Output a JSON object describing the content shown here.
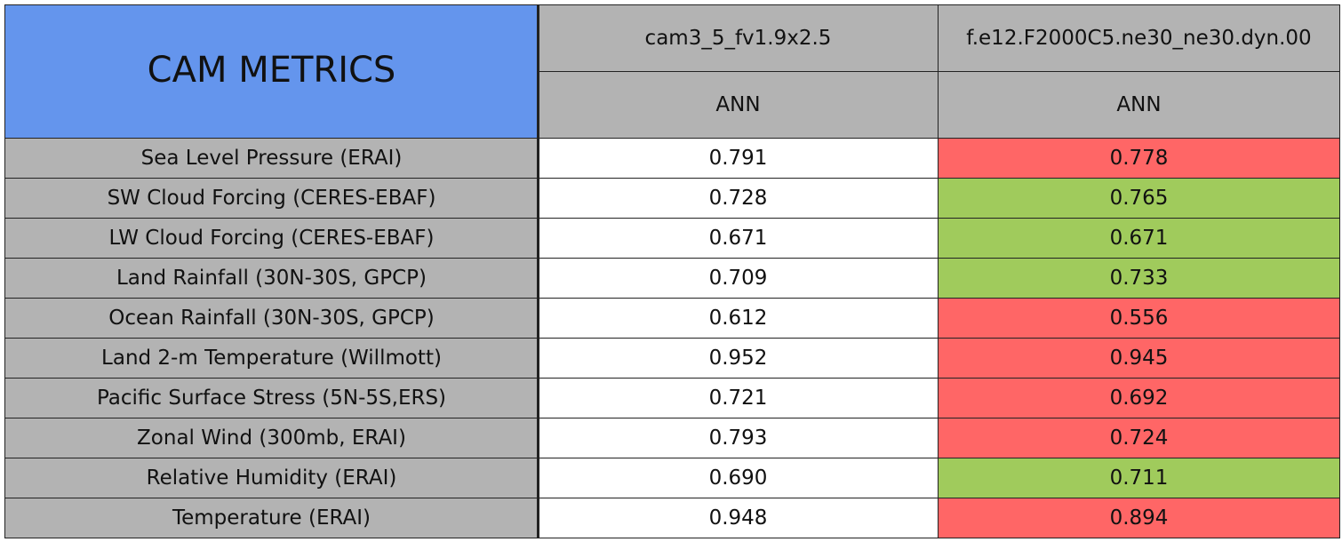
{
  "header": {
    "title": "CAM METRICS",
    "title_color": "#6495ed"
  },
  "columns": [
    {
      "name": "cam3_5_fv1.9x2.5",
      "season": "ANN"
    },
    {
      "name": "f.e12.F2000C5.ne30_ne30.dyn.00",
      "season": "ANN"
    }
  ],
  "table": {
    "rows": [
      {
        "label": "Sea Level Pressure (ERAI)",
        "values": [
          "0.791",
          "0.778"
        ],
        "colors": [
          "#ffffff",
          "#ff6666"
        ]
      },
      {
        "label": "SW Cloud Forcing (CERES-EBAF)",
        "values": [
          "0.728",
          "0.765"
        ],
        "colors": [
          "#ffffff",
          "#a0cb5c"
        ]
      },
      {
        "label": "LW Cloud Forcing (CERES-EBAF)",
        "values": [
          "0.671",
          "0.671"
        ],
        "colors": [
          "#ffffff",
          "#a0cb5c"
        ]
      },
      {
        "label": "Land Rainfall (30N-30S, GPCP)",
        "values": [
          "0.709",
          "0.733"
        ],
        "colors": [
          "#ffffff",
          "#a0cb5c"
        ]
      },
      {
        "label": "Ocean Rainfall (30N-30S, GPCP)",
        "values": [
          "0.612",
          "0.556"
        ],
        "colors": [
          "#ffffff",
          "#ff6666"
        ]
      },
      {
        "label": "Land 2-m Temperature (Willmott)",
        "values": [
          "0.952",
          "0.945"
        ],
        "colors": [
          "#ffffff",
          "#ff6666"
        ]
      },
      {
        "label": "Pacific Surface Stress (5N-5S,ERS)",
        "values": [
          "0.721",
          "0.692"
        ],
        "colors": [
          "#ffffff",
          "#ff6666"
        ]
      },
      {
        "label": "Zonal Wind (300mb, ERAI)",
        "values": [
          "0.793",
          "0.724"
        ],
        "colors": [
          "#ffffff",
          "#ff6666"
        ]
      },
      {
        "label": "Relative Humidity (ERAI)",
        "values": [
          "0.690",
          "0.711"
        ],
        "colors": [
          "#ffffff",
          "#a0cb5c"
        ]
      },
      {
        "label": "Temperature (ERAI)",
        "values": [
          "0.948",
          "0.894"
        ],
        "colors": [
          "#ffffff",
          "#ff6666"
        ]
      }
    ]
  }
}
